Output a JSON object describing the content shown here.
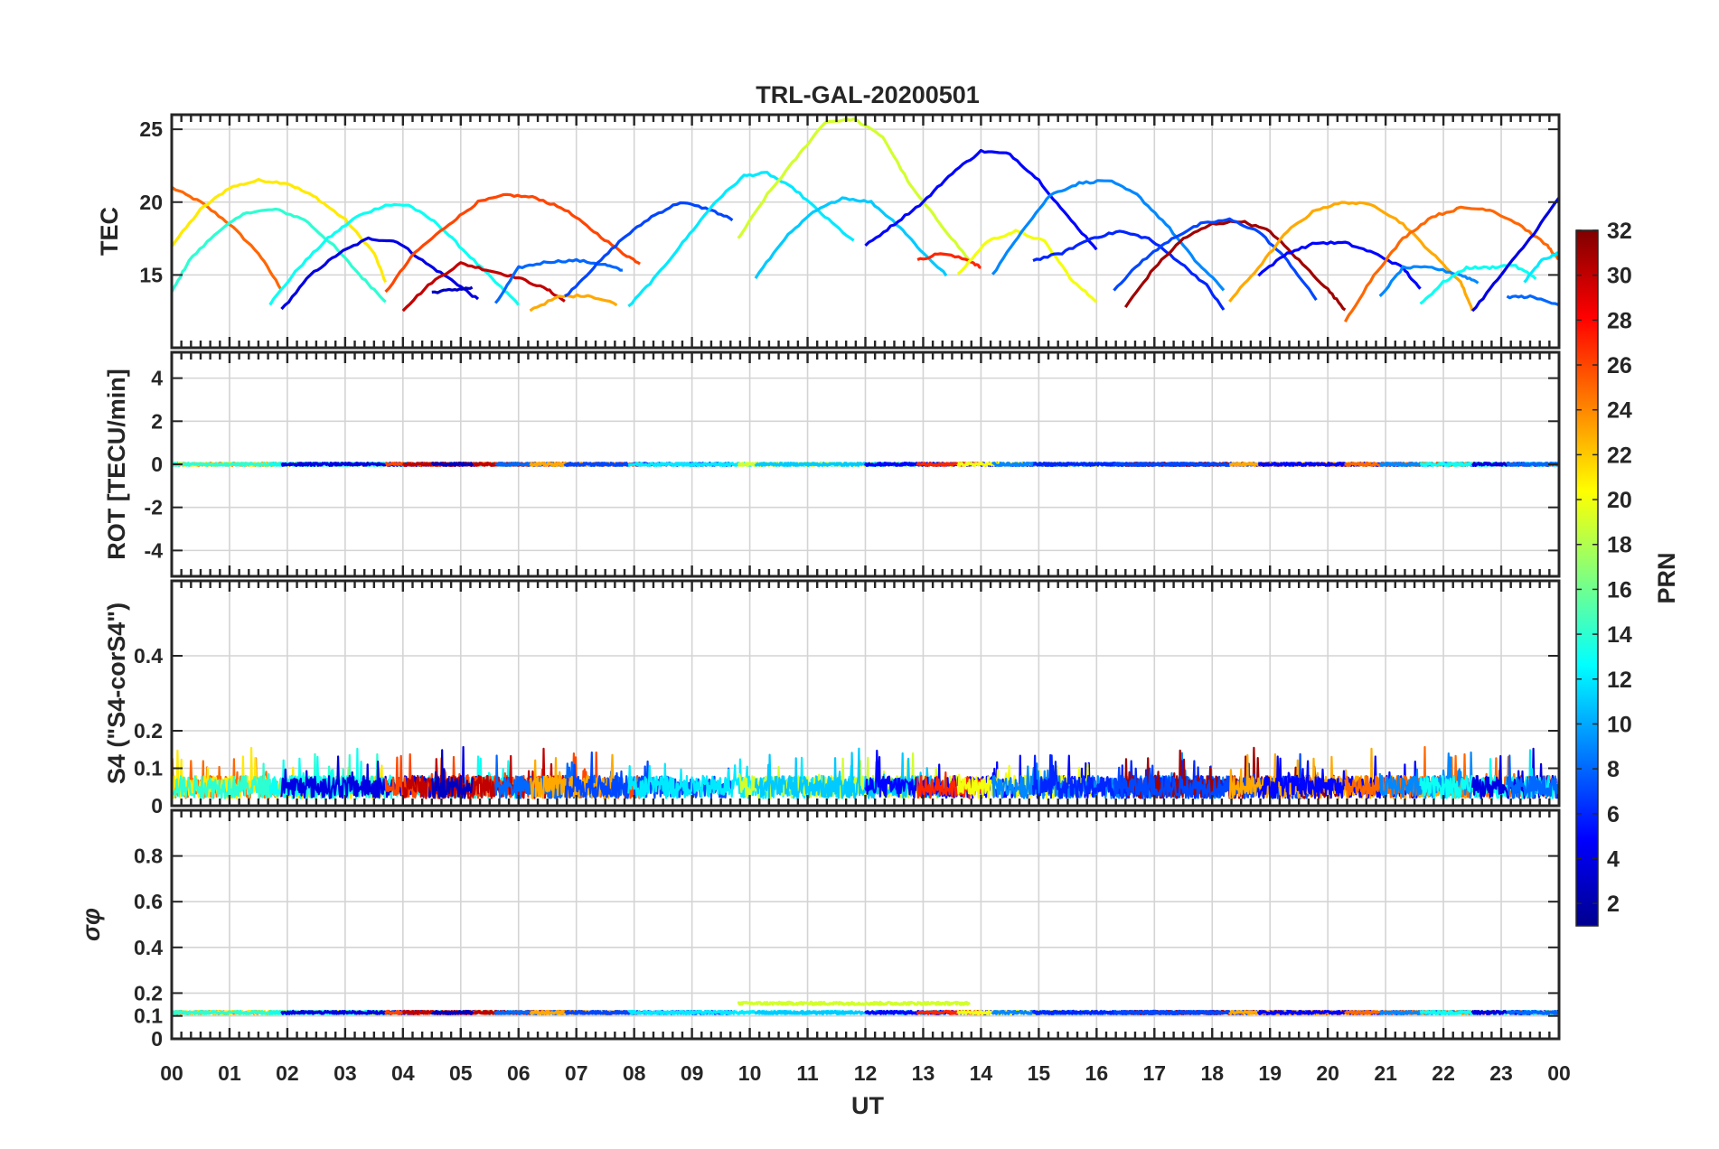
{
  "chart_data": {
    "type": "line",
    "title": "TRL-GAL-20200501",
    "xlabel": "UT",
    "xlim": [
      0,
      24
    ],
    "x_tick_labels": [
      "00",
      "01",
      "02",
      "03",
      "04",
      "05",
      "06",
      "07",
      "08",
      "09",
      "10",
      "11",
      "12",
      "13",
      "14",
      "15",
      "16",
      "17",
      "18",
      "19",
      "20",
      "21",
      "22",
      "23",
      "00"
    ],
    "colorbar": {
      "label": "PRN",
      "range": [
        1,
        32
      ],
      "tick_labels": [
        "2",
        "4",
        "6",
        "8",
        "10",
        "12",
        "14",
        "16",
        "18",
        "20",
        "22",
        "24",
        "26",
        "28",
        "30",
        "32"
      ],
      "colormap": "jet"
    },
    "panels": [
      {
        "key": "tec",
        "ylabel": "TEC",
        "ylim": [
          10,
          26
        ],
        "y_ticks": [
          15,
          20,
          25
        ],
        "y_tick_labels": [
          "15",
          "20",
          "25"
        ],
        "series": [
          {
            "name": "PRN 25",
            "prn": 25,
            "x": [
              0,
              0.5,
              1,
              1.5,
              1.9
            ],
            "y": [
              21,
              20,
              18.5,
              16.5,
              14
            ]
          },
          {
            "name": "PRN 21",
            "prn": 21,
            "x": [
              0,
              0.5,
              1,
              1.5,
              2,
              2.5,
              3,
              3.5,
              3.7
            ],
            "y": [
              17,
              19.5,
              21,
              21.5,
              21.3,
              20.3,
              18.8,
              16.5,
              14.5
            ]
          },
          {
            "name": "PRN 14",
            "prn": 14,
            "x": [
              0,
              0.3,
              0.8,
              1.3,
              1.8,
              2.3,
              2.8,
              3.3,
              3.7
            ],
            "y": [
              13.8,
              16,
              18,
              19.3,
              19.5,
              18.8,
              17,
              14.8,
              13.2
            ]
          },
          {
            "name": "PRN 13",
            "prn": 13,
            "x": [
              1.7,
              2.2,
              2.7,
              3.2,
              3.7,
              4.1,
              4.6,
              5.1,
              5.6,
              6.0
            ],
            "y": [
              13,
              15.5,
              17.5,
              19,
              19.8,
              19.8,
              18.5,
              16.5,
              14.5,
              13
            ]
          },
          {
            "name": "PRN 4",
            "prn": 4,
            "x": [
              1.9,
              2.4,
              2.9,
              3.4,
              3.9,
              4.4,
              4.9,
              5.3
            ],
            "y": [
              12.6,
              15,
              16.5,
              17.5,
              17.3,
              15.8,
              14.5,
              13.3
            ]
          },
          {
            "name": "PRN 26",
            "prn": 26,
            "x": [
              3.7,
              4.2,
              4.8,
              5.3,
              5.8,
              6.3,
              6.8,
              7.3,
              7.8,
              8.1
            ],
            "y": [
              13.8,
              16.5,
              18.5,
              20,
              20.5,
              20.3,
              19.5,
              18,
              16.5,
              15.8
            ]
          },
          {
            "name": "PRN 30",
            "prn": 30,
            "x": [
              4,
              4.5,
              5,
              5.5,
              6,
              6.5,
              6.8
            ],
            "y": [
              12.6,
              14.5,
              15.8,
              15.3,
              14.8,
              14,
              13.2
            ]
          },
          {
            "name": "PRN 3",
            "prn": 3,
            "x": [
              4.5,
              4.9,
              5.2
            ],
            "y": [
              13.8,
              14,
              14.1
            ]
          },
          {
            "name": "PRN 8",
            "prn": 8,
            "x": [
              5.6,
              6,
              6.5,
              7,
              7.5,
              7.8
            ],
            "y": [
              13,
              15.5,
              15.9,
              16,
              15.7,
              15.3
            ]
          },
          {
            "name": "PRN 23",
            "prn": 23,
            "x": [
              6.2,
              6.7,
              7.2,
              7.7
            ],
            "y": [
              12.6,
              13.5,
              13.6,
              13
            ]
          },
          {
            "name": "PRN 7",
            "prn": 7,
            "x": [
              6.8,
              7.3,
              7.8,
              8.3,
              8.8,
              9.3,
              9.7
            ],
            "y": [
              13.5,
              15.5,
              17.5,
              19,
              20,
              19.5,
              18.8
            ]
          },
          {
            "name": "PRN 12",
            "prn": 12,
            "x": [
              7.9,
              8.4,
              8.9,
              9.4,
              9.9,
              10.3,
              10.8,
              11.3,
              11.8
            ],
            "y": [
              12.8,
              15,
              17.5,
              20,
              21.8,
              22,
              20.8,
              19,
              17.3
            ]
          },
          {
            "name": "PRN 19",
            "prn": 19,
            "x": [
              9.8,
              10.3,
              10.8,
              11.3,
              11.8,
              12.3,
              12.8,
              13.3,
              13.8
            ],
            "y": [
              17.5,
              20.5,
              23,
              25.5,
              25.7,
              24.5,
              21,
              18.5,
              16
            ]
          },
          {
            "name": "PRN 11",
            "prn": 11,
            "x": [
              10.1,
              10.6,
              11.1,
              11.6,
              12.1,
              12.6,
              13,
              13.4
            ],
            "y": [
              14.8,
              17.5,
              19.3,
              20.3,
              20,
              18.3,
              16.5,
              15
            ]
          },
          {
            "name": "PRN 5",
            "prn": 5,
            "x": [
              12,
              12.5,
              13,
              13.5,
              14,
              14.5,
              15,
              15.5,
              16
            ],
            "y": [
              17,
              18.5,
              20,
              22,
              23.5,
              23.3,
              21.5,
              19,
              16.8
            ]
          },
          {
            "name": "PRN 27",
            "prn": 27,
            "x": [
              12.9,
              13.3,
              13.8,
              14
            ],
            "y": [
              16,
              16.5,
              16,
              15.5
            ]
          },
          {
            "name": "PRN 20",
            "prn": 20,
            "x": [
              13.6,
              14.1,
              14.6,
              15.1,
              15.6,
              16.0
            ],
            "y": [
              15,
              17.3,
              18,
              17.3,
              14.5,
              13.2
            ]
          },
          {
            "name": "PRN 9",
            "prn": 9,
            "x": [
              14.2,
              14.7,
              15.2,
              15.7,
              16.2,
              16.7,
              17.2,
              17.7,
              18.2
            ],
            "y": [
              15,
              18,
              20.5,
              21.3,
              21.5,
              20.5,
              18.5,
              16,
              14
            ]
          },
          {
            "name": "PRN 6",
            "prn": 6,
            "x": [
              14.9,
              15.4,
              15.9,
              16.4,
              16.9,
              17.4,
              17.9,
              18.2
            ],
            "y": [
              16,
              16.5,
              17.5,
              18,
              17.5,
              16,
              14.3,
              12.6
            ]
          },
          {
            "name": "PRN 31",
            "prn": 31,
            "x": [
              16.5,
              17,
              17.5,
              18,
              18.5,
              19,
              19.5,
              20.0,
              20.3
            ],
            "y": [
              12.8,
              15.5,
              17.5,
              18.5,
              18.7,
              18,
              16,
              14,
              12.6
            ]
          },
          {
            "name": "PRN 7b",
            "prn": 7,
            "x": [
              16.3,
              16.8,
              17.3,
              17.8,
              18.3,
              18.8,
              19.3,
              19.8
            ],
            "y": [
              14,
              16,
              17.5,
              18.5,
              18.8,
              18,
              16,
              13.3
            ]
          },
          {
            "name": "PRN 23b",
            "prn": 23,
            "x": [
              18.3,
              18.8,
              19.3,
              19.8,
              20.3,
              20.8,
              21.3,
              21.8,
              22.3,
              22.5
            ],
            "y": [
              13.2,
              15.5,
              18,
              19.5,
              20,
              19.8,
              18.5,
              16.5,
              14.5,
              12.6
            ]
          },
          {
            "name": "PRN 5b",
            "prn": 5,
            "x": [
              18.8,
              19.3,
              19.8,
              20.3,
              20.8,
              21.3,
              21.6
            ],
            "y": [
              15,
              16.5,
              17.2,
              17.2,
              16.5,
              15.5,
              14
            ]
          },
          {
            "name": "PRN 25b",
            "prn": 25,
            "x": [
              20.3,
              20.8,
              21.3,
              21.8,
              22.3,
              22.8,
              23.3,
              23.8,
              24
            ],
            "y": [
              11.8,
              15,
              17.5,
              19,
              19.6,
              19.5,
              18.5,
              17,
              16
            ]
          },
          {
            "name": "PRN 9b",
            "prn": 9,
            "x": [
              20.9,
              21.3,
              21.8,
              22.3,
              22.6
            ],
            "y": [
              13.5,
              15.5,
              15.5,
              15,
              14.5
            ]
          },
          {
            "name": "PRN 13b",
            "prn": 13,
            "x": [
              21.6,
              22,
              22.4,
              22.8,
              23.2,
              23.6
            ],
            "y": [
              13,
              14.5,
              15.5,
              15.5,
              15.7,
              14.8
            ]
          },
          {
            "name": "PRN 4b",
            "prn": 4,
            "x": [
              22.5,
              23,
              23.5,
              24
            ],
            "y": [
              12.5,
              15,
              17.5,
              20.3
            ]
          },
          {
            "name": "PRN 12b",
            "prn": 12,
            "x": [
              23.4,
              23.7,
              24
            ],
            "y": [
              14.5,
              16,
              16.5
            ]
          },
          {
            "name": "PRN 8b",
            "prn": 8,
            "x": [
              23.1,
              23.5,
              24
            ],
            "y": [
              13.5,
              13.5,
              13
            ]
          }
        ]
      },
      {
        "key": "rot",
        "ylabel": "ROT [TECU/min]",
        "ylim": [
          -5.2,
          5.2
        ],
        "y_ticks": [
          -4,
          -2,
          0,
          2,
          4
        ],
        "y_tick_labels": [
          "-4",
          "-2",
          "0",
          "2",
          "4"
        ],
        "baseline": 0,
        "noise": 0.06
      },
      {
        "key": "s4",
        "ylabel": "S4 (\"S4-corS4\")",
        "ylim": [
          0,
          0.6
        ],
        "y_ticks": [
          0,
          0.1,
          0.2,
          0.4
        ],
        "y_tick_labels": [
          "0",
          "0.1",
          "0.2",
          "0.4"
        ],
        "baseline": 0.05,
        "noise": 0.03
      },
      {
        "key": "sigphi",
        "ylabel": "σφ",
        "ylim": [
          0,
          1
        ],
        "y_ticks": [
          0,
          0.1,
          0.2,
          0.4,
          0.6,
          0.8
        ],
        "y_tick_labels": [
          "0",
          "0.1",
          "0.2",
          "0.4",
          "0.6",
          "0.8"
        ],
        "baseline": 0.115,
        "noise": 0.006
      }
    ]
  }
}
